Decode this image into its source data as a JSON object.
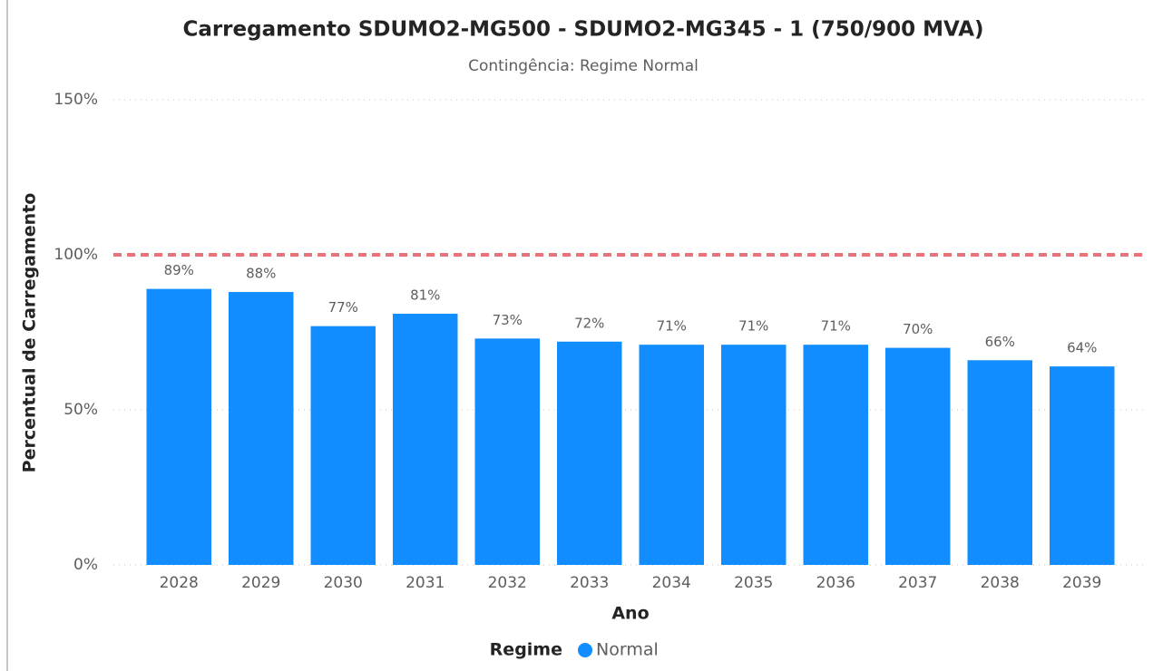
{
  "chart_data": {
    "type": "bar",
    "title": "Carregamento SDUMO2-MG500 - SDUMO2-MG345 - 1  (750/900 MVA)",
    "subtitle": "Contingência: Regime Normal",
    "x_label": "Ano",
    "y_label": "Percentual de Carregamento",
    "legend_title": "Regime",
    "categories": [
      "2028",
      "2029",
      "2030",
      "2031",
      "2032",
      "2033",
      "2034",
      "2035",
      "2036",
      "2037",
      "2038",
      "2039"
    ],
    "series": [
      {
        "name": "Normal",
        "color": "#118dff",
        "values": [
          89,
          88,
          77,
          81,
          73,
          72,
          71,
          71,
          71,
          70,
          66,
          64
        ],
        "value_labels": [
          "89%",
          "88%",
          "77%",
          "81%",
          "73%",
          "72%",
          "71%",
          "71%",
          "71%",
          "70%",
          "66%",
          "64%"
        ]
      }
    ],
    "ylim": [
      0,
      150
    ],
    "yticks": [
      {
        "value": 0,
        "label": "0%"
      },
      {
        "value": 50,
        "label": "50%"
      },
      {
        "value": 100,
        "label": "100%"
      },
      {
        "value": 150,
        "label": "150%"
      }
    ],
    "grid": true,
    "reference_line": {
      "value": 100,
      "color": "#e8737b"
    }
  }
}
